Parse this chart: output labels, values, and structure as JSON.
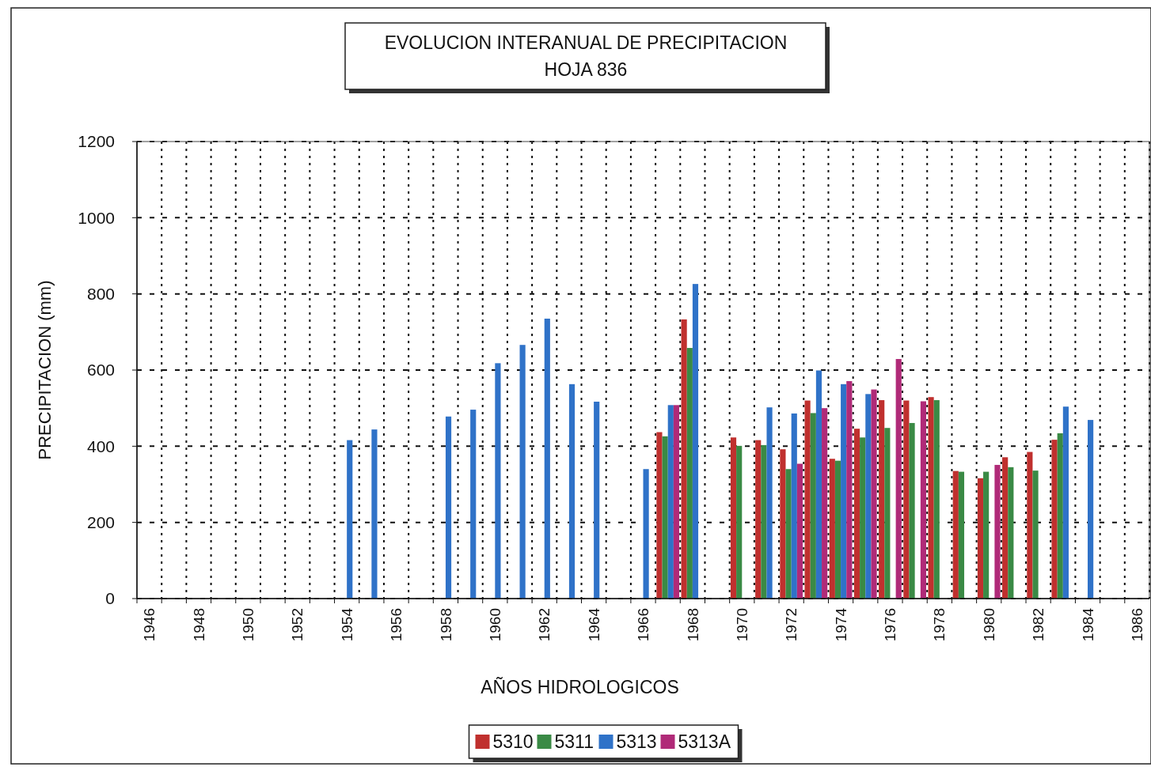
{
  "chart_data": {
    "type": "bar",
    "title": "EVOLUCION INTERANUAL DE PRECIPITACION",
    "subtitle": "HOJA 836",
    "xlabel": "AÑOS HIDROLOGICOS",
    "ylabel": "PRECIPITACION (mm)",
    "categories": [
      "1946",
      null,
      "1948",
      null,
      "1950",
      null,
      "1952",
      null,
      "1954",
      null,
      "1956",
      null,
      "1958",
      null,
      "1960",
      null,
      "1962",
      null,
      "1964",
      null,
      "1966",
      null,
      "1968",
      null,
      "1970",
      null,
      "1972",
      null,
      "1974",
      null,
      "1976",
      null,
      "1978",
      null,
      "1980",
      null,
      "1982",
      null,
      "1984",
      null,
      "1986"
    ],
    "series": [
      {
        "name": "5310",
        "color": "#c0302e",
        "values": [
          null,
          null,
          null,
          null,
          null,
          null,
          null,
          null,
          null,
          null,
          null,
          null,
          null,
          null,
          null,
          null,
          null,
          null,
          null,
          null,
          null,
          437,
          733,
          null,
          423,
          416,
          392,
          520,
          367,
          446,
          521,
          520,
          529,
          335,
          316,
          371,
          385,
          417,
          null,
          null,
          null
        ]
      },
      {
        "name": "5311",
        "color": "#3a8a45",
        "values": [
          null,
          null,
          null,
          null,
          null,
          null,
          null,
          null,
          null,
          null,
          null,
          null,
          null,
          null,
          null,
          null,
          null,
          null,
          null,
          null,
          null,
          426,
          658,
          null,
          401,
          403,
          340,
          487,
          362,
          423,
          448,
          461,
          521,
          333,
          333,
          345,
          336,
          434,
          null,
          null,
          null
        ]
      },
      {
        "name": "5313",
        "color": "#2f72c8",
        "values": [
          null,
          null,
          null,
          null,
          null,
          null,
          null,
          null,
          416,
          444,
          null,
          null,
          478,
          496,
          618,
          666,
          735,
          563,
          517,
          null,
          340,
          508,
          826,
          null,
          null,
          502,
          486,
          599,
          563,
          537,
          null,
          null,
          null,
          null,
          null,
          null,
          null,
          504,
          469,
          null,
          null
        ]
      },
      {
        "name": "5313A",
        "color": "#b02a78",
        "values": [
          null,
          null,
          null,
          null,
          null,
          null,
          null,
          null,
          null,
          null,
          null,
          null,
          null,
          null,
          null,
          null,
          null,
          null,
          null,
          null,
          null,
          508,
          null,
          null,
          null,
          null,
          354,
          500,
          571,
          549,
          629,
          518,
          null,
          null,
          351,
          null,
          null,
          null,
          null,
          null,
          null
        ]
      }
    ],
    "ylim": [
      0,
      1200
    ],
    "yticks": [
      0,
      200,
      400,
      600,
      800,
      1000,
      1200
    ],
    "grid": true,
    "legend": "bottom"
  }
}
